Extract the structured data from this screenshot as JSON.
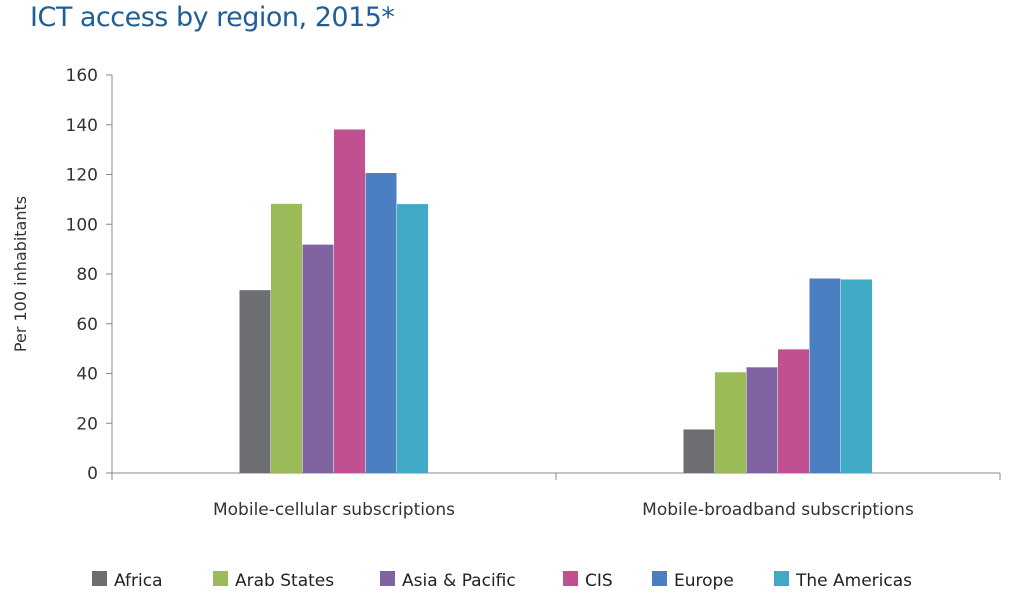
{
  "chart_data": {
    "type": "bar",
    "title": "ICT access by region, 2015*",
    "xlabel": "",
    "ylabel": "Per 100 inhabitants",
    "ylim": [
      0,
      160
    ],
    "yticks": [
      0,
      20,
      40,
      60,
      80,
      100,
      120,
      140,
      160
    ],
    "categories": [
      "Mobile-cellular subscriptions",
      "Mobile-broadband subscriptions"
    ],
    "grid": false,
    "legend_position": "bottom",
    "series": [
      {
        "name": "Africa",
        "values": [
          73.5,
          17.5
        ],
        "color": "#6d6e71"
      },
      {
        "name": "Arab States",
        "values": [
          108.2,
          40.5
        ],
        "color": "#9bbb59"
      },
      {
        "name": "Asia & Pacific",
        "values": [
          91.8,
          42.5
        ],
        "color": "#8064a2"
      },
      {
        "name": "CIS",
        "values": [
          138.1,
          49.7
        ],
        "color": "#c0508f"
      },
      {
        "name": "Europe",
        "values": [
          120.6,
          78.2
        ],
        "color": "#4a7fc1"
      },
      {
        "name": "The Americas",
        "values": [
          108.1,
          77.8
        ],
        "color": "#3fa9c6"
      }
    ]
  }
}
